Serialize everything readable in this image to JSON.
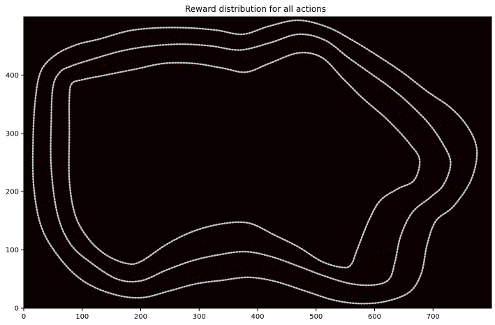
{
  "chart_data": {
    "type": "heatmap",
    "title": "Reward distribution for all actions",
    "xlabel": "",
    "ylabel": "",
    "xlim": [
      0,
      800
    ],
    "ylim": [
      0,
      500
    ],
    "x_ticks": [
      "0",
      "100",
      "200",
      "300",
      "400",
      "500",
      "600",
      "700"
    ],
    "y_ticks": [
      "0",
      "100",
      "200",
      "300",
      "400"
    ],
    "grid": false,
    "background_color": "#0a0000",
    "track_color": "#c8c8c8",
    "scatter_color": "#b00000",
    "series": [
      {
        "points": [
          [
            55,
            435
          ],
          [
            90,
            452
          ],
          [
            130,
            462
          ],
          [
            180,
            476
          ],
          [
            230,
            481
          ],
          [
            280,
            481
          ],
          [
            330,
            477
          ],
          [
            375,
            470
          ],
          [
            420,
            484
          ],
          [
            470,
            494
          ],
          [
            520,
            482
          ],
          [
            565,
            458
          ],
          [
            610,
            430
          ],
          [
            650,
            403
          ],
          [
            690,
            372
          ],
          [
            730,
            344
          ],
          [
            760,
            310
          ],
          [
            775,
            270
          ],
          [
            765,
            220
          ],
          [
            735,
            175
          ],
          [
            705,
            150
          ],
          [
            690,
            110
          ],
          [
            680,
            60
          ],
          [
            660,
            28
          ],
          [
            620,
            12
          ],
          [
            575,
            8
          ],
          [
            530,
            14
          ],
          [
            480,
            30
          ],
          [
            430,
            46
          ],
          [
            385,
            53
          ],
          [
            340,
            48
          ],
          [
            295,
            42
          ],
          [
            250,
            30
          ],
          [
            200,
            18
          ],
          [
            150,
            25
          ],
          [
            100,
            48
          ],
          [
            60,
            88
          ],
          [
            30,
            140
          ],
          [
            17,
            210
          ],
          [
            16,
            290
          ],
          [
            20,
            360
          ],
          [
            30,
            408
          ]
        ]
      },
      {
        "points": [
          [
            80,
            415
          ],
          [
            120,
            428
          ],
          [
            170,
            442
          ],
          [
            220,
            450
          ],
          [
            270,
            453
          ],
          [
            320,
            450
          ],
          [
            370,
            443
          ],
          [
            420,
            455
          ],
          [
            470,
            470
          ],
          [
            515,
            460
          ],
          [
            555,
            430
          ],
          [
            590,
            405
          ],
          [
            625,
            380
          ],
          [
            655,
            355
          ],
          [
            690,
            320
          ],
          [
            715,
            285
          ],
          [
            730,
            250
          ],
          [
            718,
            212
          ],
          [
            695,
            190
          ],
          [
            665,
            165
          ],
          [
            645,
            125
          ],
          [
            635,
            80
          ],
          [
            625,
            50
          ],
          [
            600,
            40
          ],
          [
            560,
            42
          ],
          [
            515,
            55
          ],
          [
            470,
            72
          ],
          [
            425,
            88
          ],
          [
            380,
            97
          ],
          [
            335,
            92
          ],
          [
            290,
            82
          ],
          [
            245,
            66
          ],
          [
            200,
            47
          ],
          [
            160,
            50
          ],
          [
            115,
            78
          ],
          [
            80,
            110
          ],
          [
            58,
            160
          ],
          [
            47,
            240
          ],
          [
            47,
            320
          ],
          [
            50,
            380
          ],
          [
            62,
            405
          ]
        ]
      },
      {
        "points": [
          [
            82,
            385
          ],
          [
            100,
            392
          ],
          [
            140,
            400
          ],
          [
            190,
            410
          ],
          [
            240,
            420
          ],
          [
            290,
            420
          ],
          [
            340,
            412
          ],
          [
            380,
            405
          ],
          [
            420,
            420
          ],
          [
            470,
            438
          ],
          [
            510,
            430
          ],
          [
            545,
            395
          ],
          [
            580,
            360
          ],
          [
            615,
            330
          ],
          [
            640,
            305
          ],
          [
            660,
            282
          ],
          [
            677,
            255
          ],
          [
            668,
            220
          ],
          [
            640,
            205
          ],
          [
            610,
            185
          ],
          [
            590,
            150
          ],
          [
            570,
            100
          ],
          [
            560,
            75
          ],
          [
            545,
            70
          ],
          [
            510,
            80
          ],
          [
            470,
            105
          ],
          [
            430,
            125
          ],
          [
            385,
            146
          ],
          [
            340,
            145
          ],
          [
            290,
            132
          ],
          [
            245,
            110
          ],
          [
            200,
            80
          ],
          [
            175,
            77
          ],
          [
            140,
            92
          ],
          [
            110,
            120
          ],
          [
            88,
            160
          ],
          [
            78,
            220
          ],
          [
            78,
            300
          ],
          [
            78,
            360
          ]
        ]
      }
    ]
  }
}
